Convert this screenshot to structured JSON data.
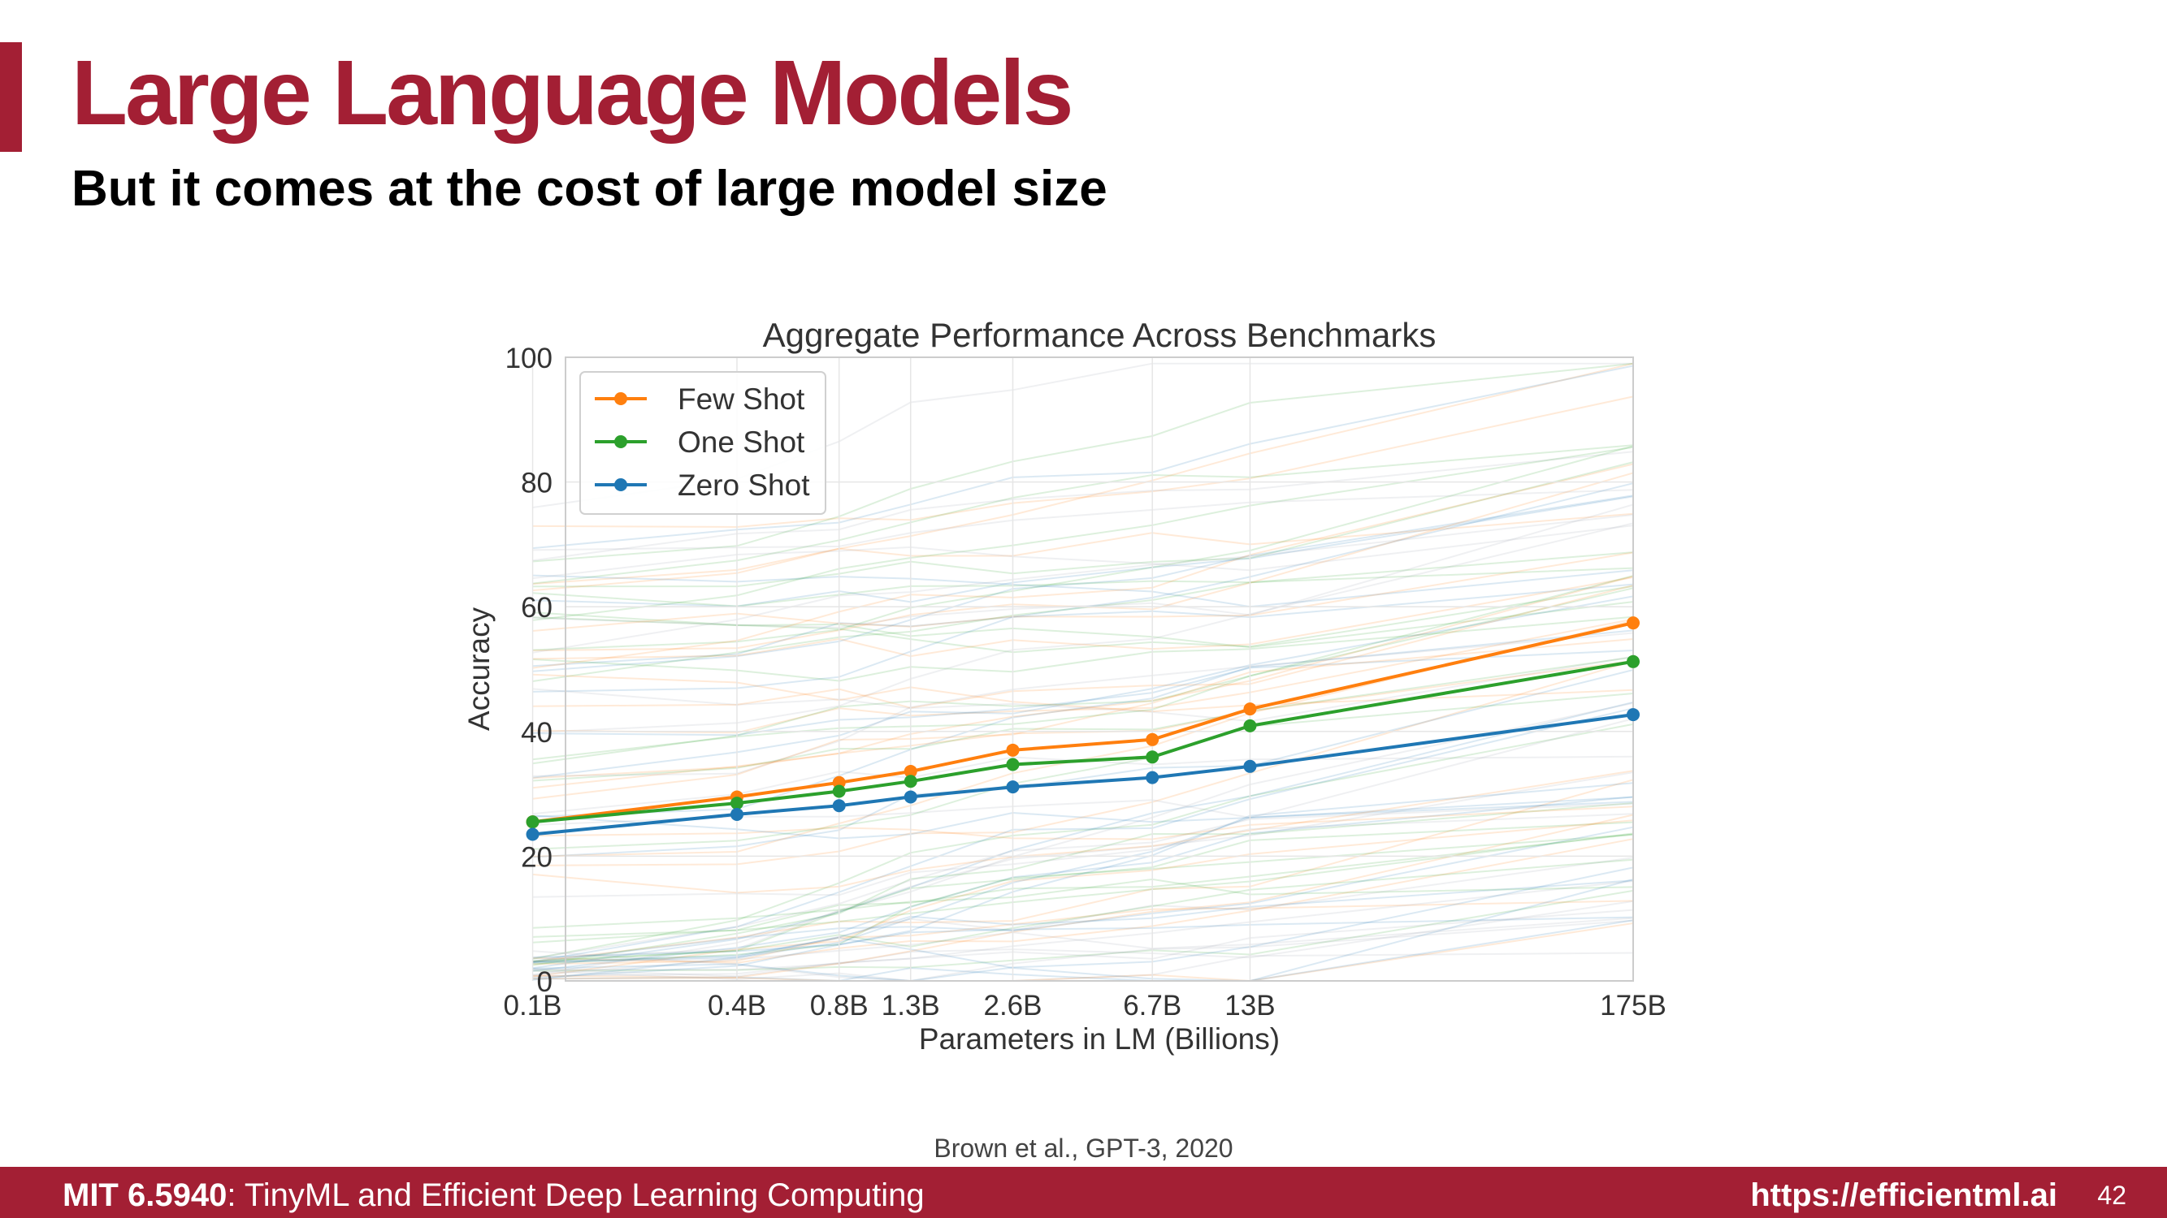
{
  "slide": {
    "title": "Large Language Models",
    "subtitle": "But it comes at the cost of large model size",
    "citation": "Brown et al., GPT-3, 2020",
    "accent_color": "#a31f34"
  },
  "footer": {
    "course_code": "MIT 6.5940",
    "course_name": ": TinyML and Efficient Deep Learning Computing",
    "url": "https://efficientml.ai",
    "page_number": "42"
  },
  "chart_data": {
    "type": "line",
    "title": "Aggregate Performance Across Benchmarks",
    "xlabel": "Parameters in LM (Billions)",
    "ylabel": "Accuracy",
    "x_ticks": [
      "0.1B",
      "0.4B",
      "0.8B",
      "1.3B",
      "2.6B",
      "6.7B",
      "13B",
      "175B"
    ],
    "x_scale": "log",
    "ylim": [
      0,
      100
    ],
    "y_ticks": [
      0,
      20,
      40,
      60,
      80,
      100
    ],
    "grid": true,
    "legend_position": "top-left",
    "series": [
      {
        "name": "Few Shot",
        "color": "#ff7f0e",
        "values": [
          25.5,
          29.5,
          31.8,
          33.6,
          37.0,
          38.7,
          43.6,
          57.4
        ]
      },
      {
        "name": "One Shot",
        "color": "#2ca02c",
        "values": [
          25.5,
          28.5,
          30.4,
          32.0,
          34.7,
          35.9,
          40.9,
          51.2
        ]
      },
      {
        "name": "Zero Shot",
        "color": "#1f77b4",
        "values": [
          23.5,
          26.7,
          28.1,
          29.5,
          31.1,
          32.6,
          34.4,
          42.7
        ]
      }
    ],
    "background_task_lines": "faint per-benchmark lines in orange, green and blue"
  }
}
